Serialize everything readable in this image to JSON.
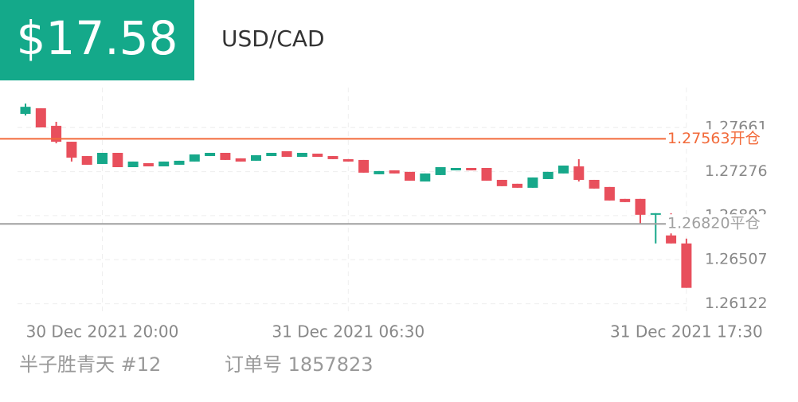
{
  "header": {
    "price": "$17.58",
    "pair": "USD/CAD"
  },
  "footer": {
    "user": "半子胜青天 #12",
    "order": "订单号 1857823"
  },
  "chart_data": {
    "type": "candlestick",
    "categories": [
      null,
      null,
      null,
      null,
      null,
      "30 Dec 2021 20:00",
      null,
      null,
      null,
      null,
      null,
      null,
      null,
      null,
      null,
      null,
      null,
      null,
      null,
      null,
      null,
      "31 Dec 2021 06:30",
      null,
      null,
      null,
      null,
      null,
      null,
      null,
      null,
      null,
      null,
      null,
      null,
      null,
      null,
      null,
      null,
      null,
      null,
      null,
      null,
      null,
      "31 Dec 2021 17:30"
    ],
    "open": [
      1.2778,
      1.27829,
      1.27676,
      1.27537,
      1.27412,
      1.27343,
      1.2744,
      1.27315,
      1.2735,
      1.27322,
      1.27336,
      1.27364,
      1.27412,
      1.2744,
      1.27392,
      1.27371,
      1.27412,
      1.27454,
      1.27405,
      1.27433,
      1.27412,
      1.27385,
      1.27378,
      1.27253,
      1.27287,
      1.27274,
      1.2719,
      1.27246,
      1.27287,
      1.27308,
      1.27308,
      1.27204,
      1.2717,
      1.27135,
      1.27211,
      1.2726,
      1.27322,
      1.27204,
      1.27142,
      1.27038,
      1.27038,
      1.26899,
      1.26719,
      1.26649
    ],
    "high": [
      1.2787,
      1.27829,
      1.27711,
      1.27537,
      1.27412,
      1.2744,
      1.2744,
      1.27364,
      1.2735,
      1.27364,
      1.27371,
      1.27426,
      1.2744,
      1.2744,
      1.27392,
      1.27419,
      1.2744,
      1.27454,
      1.2744,
      1.27433,
      1.27412,
      1.27385,
      1.27378,
      1.27281,
      1.27287,
      1.27274,
      1.2726,
      1.27315,
      1.27308,
      1.27308,
      1.27308,
      1.27204,
      1.2717,
      1.27225,
      1.27274,
      1.27329,
      1.27385,
      1.27204,
      1.27142,
      1.27038,
      1.27038,
      1.26913,
      1.26913,
      1.26691
    ],
    "low": [
      1.27766,
      1.27662,
      1.27523,
      1.27364,
      1.27336,
      1.27343,
      1.27315,
      1.27315,
      1.27322,
      1.27322,
      1.27336,
      1.27364,
      1.27412,
      1.27378,
      1.27364,
      1.27371,
      1.27412,
      1.27405,
      1.27405,
      1.27405,
      1.27385,
      1.27364,
      1.27267,
      1.27253,
      1.2726,
      1.27197,
      1.2719,
      1.27246,
      1.27287,
      1.27287,
      1.27197,
      1.27149,
      1.27135,
      1.27135,
      1.27211,
      1.2726,
      1.2719,
      1.27128,
      1.27024,
      1.2701,
      1.26816,
      1.26649,
      1.26649,
      1.26261
    ],
    "close": [
      1.27842,
      1.27662,
      1.27537,
      1.27398,
      1.27336,
      1.2744,
      1.27315,
      1.27364,
      1.27322,
      1.27364,
      1.27371,
      1.27426,
      1.2744,
      1.27378,
      1.27364,
      1.27419,
      1.2744,
      1.27405,
      1.2744,
      1.27405,
      1.27385,
      1.27364,
      1.27267,
      1.27281,
      1.2726,
      1.27197,
      1.2726,
      1.27315,
      1.27308,
      1.27287,
      1.27197,
      1.27149,
      1.27135,
      1.27225,
      1.27274,
      1.27329,
      1.27204,
      1.27128,
      1.27024,
      1.2701,
      1.26899,
      1.26913,
      1.26649,
      1.26261
    ],
    "up_color": "#17a88a",
    "down_color": "#e84f5c",
    "ylim": [
      1.2605,
      1.2801
    ],
    "yticks": [
      1.26122,
      1.26507,
      1.26892,
      1.27276,
      1.27661
    ],
    "grid": true,
    "lines": [
      {
        "value": 1.27563,
        "label": "1.27563开仓",
        "color": "#f26a3a"
      },
      {
        "value": 1.2682,
        "label": "1.26820平仓",
        "color": "#a0a0a0"
      }
    ]
  }
}
